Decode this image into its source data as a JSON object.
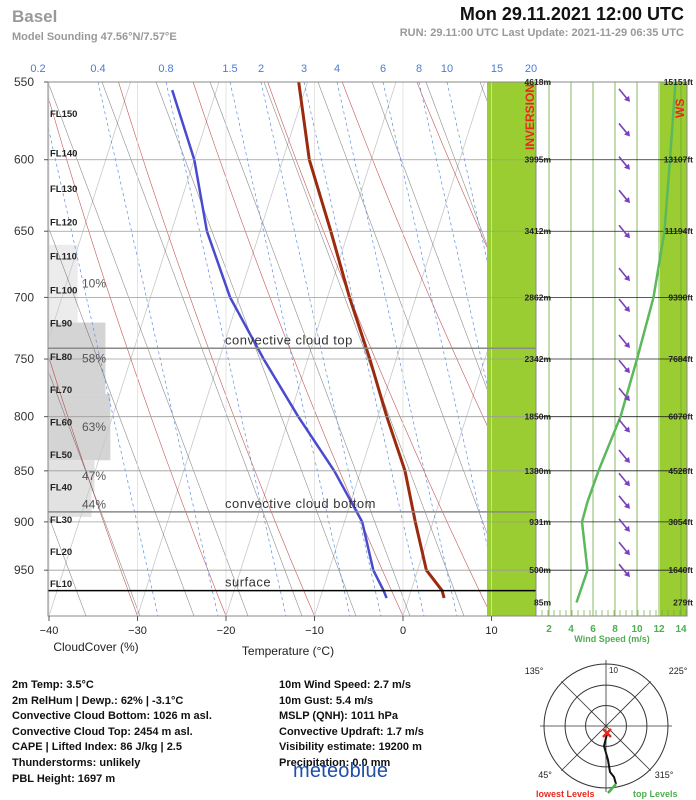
{
  "header": {
    "location": "Basel",
    "coords": "Model Sounding  47.56°N/7.57°E",
    "datetime": "Mon 29.11.2021   12:00 UTC",
    "run_info": "RUN: 29.11:00 UTC   Last Update: 2021-11-29 06:35 UTC"
  },
  "chart_data": {
    "type": "line",
    "subtype": "skew-t sounding",
    "xlabel": "Temperature (°C)",
    "cloud_axis_label": "CloudCover (%)",
    "x_ticks": [
      -40,
      -30,
      -20,
      -10,
      0,
      10
    ],
    "x_tick_labels": [
      "−40",
      "−30",
      "−20",
      "−10",
      "0",
      "10"
    ],
    "pressure_ticks": [
      550,
      600,
      650,
      700,
      750,
      800,
      850,
      900,
      950
    ],
    "mixing_ratio_labels": [
      "0.2",
      "0.4",
      "0.8",
      "1.5",
      "2",
      "3",
      "4",
      "6",
      "8",
      "10",
      "15",
      "20"
    ],
    "flight_levels": [
      "FL150",
      "FL140",
      "FL130",
      "FL120",
      "FL110",
      "FL100",
      "FL90",
      "FL80",
      "FL70",
      "FL60",
      "FL50",
      "FL40",
      "FL30",
      "FL20",
      "FL10"
    ],
    "flight_level_pressure": [
      572,
      598,
      622,
      646,
      671,
      697,
      723,
      751,
      779,
      808,
      838,
      869,
      901,
      934,
      968
    ],
    "temperature_profile": [
      {
        "p": 550,
        "t": -31
      },
      {
        "p": 600,
        "t": -27
      },
      {
        "p": 650,
        "t": -22
      },
      {
        "p": 700,
        "t": -17.5
      },
      {
        "p": 750,
        "t": -13
      },
      {
        "p": 800,
        "t": -9
      },
      {
        "p": 850,
        "t": -5
      },
      {
        "p": 900,
        "t": -2
      },
      {
        "p": 950,
        "t": 1
      },
      {
        "p": 972,
        "t": 3.5
      },
      {
        "p": 980,
        "t": 4
      }
    ],
    "dewpoint_profile": [
      {
        "p": 555,
        "t": -45
      },
      {
        "p": 600,
        "t": -40
      },
      {
        "p": 650,
        "t": -36
      },
      {
        "p": 700,
        "t": -31
      },
      {
        "p": 750,
        "t": -25
      },
      {
        "p": 800,
        "t": -19
      },
      {
        "p": 850,
        "t": -13
      },
      {
        "p": 900,
        "t": -8
      },
      {
        "p": 950,
        "t": -5
      },
      {
        "p": 972,
        "t": -3.1
      },
      {
        "p": 980,
        "t": -2.5
      }
    ],
    "cloud_layers": [
      {
        "p_top": 660,
        "p_bottom": 720,
        "cover": 10,
        "label": "10%"
      },
      {
        "p_top": 720,
        "p_bottom": 780,
        "cover": 58,
        "label": "58%"
      },
      {
        "p_top": 780,
        "p_bottom": 840,
        "cover": 63,
        "label": "63%"
      },
      {
        "p_top": 840,
        "p_bottom": 870,
        "cover": 47,
        "label": "47%"
      },
      {
        "p_top": 870,
        "p_bottom": 895,
        "cover": 44,
        "label": "44%"
      }
    ],
    "lines": [
      {
        "label": "convective cloud top",
        "p": 741
      },
      {
        "label": "convective cloud bottom",
        "p": 890
      },
      {
        "label": "surface",
        "p": 972
      }
    ],
    "inversion_label": "INVERSION",
    "ws_label": "WS",
    "altitude_levels": [
      {
        "p": 550,
        "m": "4618m",
        "ft": "15151ft"
      },
      {
        "p": 600,
        "m": "3995m",
        "ft": "13107ft"
      },
      {
        "p": 650,
        "m": "3412m",
        "ft": "11194ft"
      },
      {
        "p": 700,
        "m": "2862m",
        "ft": "9390ft"
      },
      {
        "p": 750,
        "m": "2342m",
        "ft": "7684ft"
      },
      {
        "p": 800,
        "m": "1850m",
        "ft": "6070ft"
      },
      {
        "p": 850,
        "m": "1380m",
        "ft": "4528ft"
      },
      {
        "p": 900,
        "m": "931m",
        "ft": "3054ft"
      },
      {
        "p": 950,
        "m": "500m",
        "ft": "1640ft"
      },
      {
        "p": 985,
        "m": "85m",
        "ft": "279ft"
      }
    ],
    "wind": {
      "xlabel": "Wind Speed (m/s)",
      "ticks": [
        2,
        4,
        6,
        8,
        10,
        12,
        14
      ],
      "speed_profile": [
        {
          "p": 550,
          "ws": 13.5
        },
        {
          "p": 600,
          "ws": 13
        },
        {
          "p": 650,
          "ws": 12.5
        },
        {
          "p": 700,
          "ws": 11.5
        },
        {
          "p": 750,
          "ws": 10
        },
        {
          "p": 800,
          "ws": 8.5
        },
        {
          "p": 850,
          "ws": 6.5
        },
        {
          "p": 880,
          "ws": 5.5
        },
        {
          "p": 900,
          "ws": 5
        },
        {
          "p": 950,
          "ws": 5.5
        },
        {
          "p": 985,
          "ws": 4.5
        }
      ],
      "arrows_p": [
        558,
        580,
        602,
        625,
        650,
        682,
        706,
        735,
        756,
        780,
        808,
        836,
        858,
        880,
        903,
        927,
        950
      ]
    },
    "polar": {
      "labels": [
        "10",
        "135°",
        "225°",
        "45°",
        "315°"
      ],
      "legend_low": "lowest Levels",
      "legend_top": "top Levels"
    }
  },
  "info": {
    "left": [
      "2m Temp:  3.5°C",
      "2m RelHum | Dewp.: 62% | -3.1°C",
      "Convective Cloud Bottom: 1026 m asl.",
      "Convective Cloud Top: 2454 m asl.",
      "CAPE | Lifted Index: 86 J/kg |  2.5",
      "Thunderstorms: unlikely",
      "PBL Height: 1697 m"
    ],
    "right": [
      "10m Wind Speed:  2.7 m/s",
      "10m Gust:  5.4 m/s",
      "MSLP (QNH):  1011 hPa",
      "Convective Updraft:  1.7 m/s",
      "Visibility estimate:  19200 m",
      "Precipitation:  0.0 mm"
    ]
  },
  "brand": "meteoblue",
  "colors": {
    "temperature": "#9a2b0e",
    "dewpoint": "#4a4ad0",
    "dry_adiabat": "#b02020",
    "isotherm": "#555555",
    "mixing_ratio": "#5a8fe0",
    "wind_band": "#9acd32",
    "wind_speed": "#5cb85c",
    "wind_arrow": "#7a3fbf",
    "inversion": "#e8281e"
  }
}
